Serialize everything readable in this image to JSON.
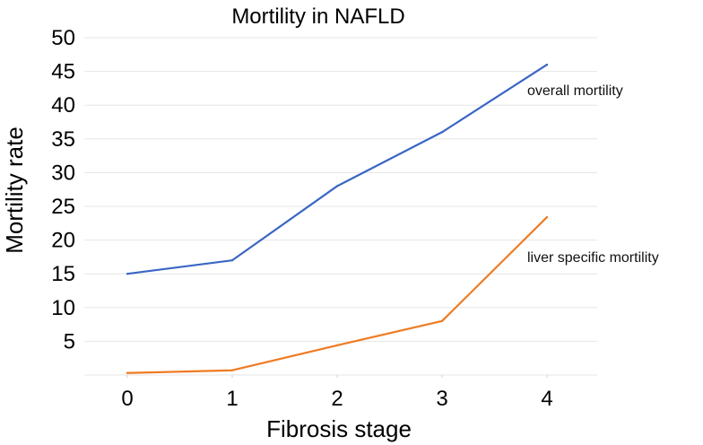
{
  "chart_data": {
    "type": "line",
    "title": "Mortility in NAFLD",
    "xlabel": "Fibrosis stage",
    "ylabel": "Mortility rate",
    "x": [
      0,
      1,
      2,
      3,
      4
    ],
    "ylim": [
      0,
      50
    ],
    "yticks": [
      5,
      10,
      15,
      20,
      25,
      30,
      35,
      40,
      45,
      50
    ],
    "grid": true,
    "legend": "inline labels at right of series",
    "series": [
      {
        "name": "overall mortility",
        "color": "#3a66c4",
        "values": [
          15,
          17,
          28,
          36,
          46
        ]
      },
      {
        "name": "liver specific mortility",
        "color": "#ef7b22",
        "values": [
          0.3,
          0.7,
          4.4,
          8,
          23.4
        ]
      }
    ]
  }
}
